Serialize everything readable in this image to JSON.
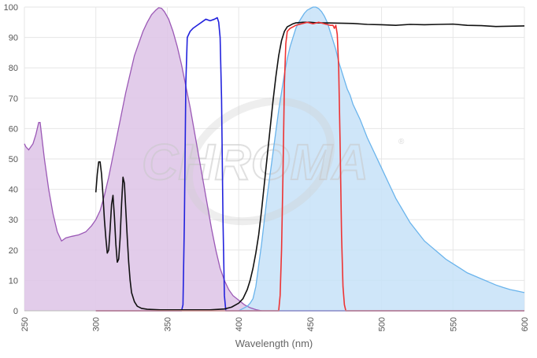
{
  "chart_data": {
    "type": "area",
    "title": "",
    "xlabel": "Wavelength (nm)",
    "ylabel": "",
    "xlim": [
      250,
      600
    ],
    "ylim": [
      0,
      100
    ],
    "x_ticks": [
      250,
      300,
      350,
      400,
      450,
      500,
      550,
      600
    ],
    "y_ticks": [
      0,
      10,
      20,
      30,
      40,
      50,
      60,
      70,
      80,
      90,
      100
    ],
    "grid": true,
    "watermark": "CHROMA",
    "series": [
      {
        "kind": "area",
        "color": "#9b59b6",
        "fill": "#ddc3e6",
        "points": [
          [
            250,
            55
          ],
          [
            251,
            54
          ],
          [
            253,
            53
          ],
          [
            256,
            55
          ],
          [
            258,
            58
          ],
          [
            260,
            62
          ],
          [
            261,
            62
          ],
          [
            262,
            58
          ],
          [
            264,
            50
          ],
          [
            267,
            40
          ],
          [
            270,
            32
          ],
          [
            273,
            26
          ],
          [
            276,
            23
          ],
          [
            279,
            24
          ],
          [
            283,
            24.5
          ],
          [
            288,
            25
          ],
          [
            293,
            26
          ],
          [
            297,
            28
          ],
          [
            300,
            30
          ],
          [
            303,
            33
          ],
          [
            306,
            38
          ],
          [
            309,
            44
          ],
          [
            312,
            51
          ],
          [
            315,
            58
          ],
          [
            318,
            65
          ],
          [
            321,
            72
          ],
          [
            324,
            78
          ],
          [
            327,
            84
          ],
          [
            330,
            88
          ],
          [
            333,
            92
          ],
          [
            336,
            95
          ],
          [
            339,
            97.5
          ],
          [
            342,
            99
          ],
          [
            344,
            99.8
          ],
          [
            346,
            99.6
          ],
          [
            348,
            98.5
          ],
          [
            351,
            96
          ],
          [
            354,
            92
          ],
          [
            357,
            87
          ],
          [
            360,
            81
          ],
          [
            363,
            74
          ],
          [
            366,
            67
          ],
          [
            369,
            59
          ],
          [
            372,
            51
          ],
          [
            375,
            43
          ],
          [
            378,
            35
          ],
          [
            381,
            27
          ],
          [
            384,
            20
          ],
          [
            387,
            14
          ],
          [
            390,
            10
          ],
          [
            393,
            7
          ],
          [
            396,
            5
          ],
          [
            400,
            3.5
          ],
          [
            404,
            2
          ],
          [
            408,
            1
          ],
          [
            412,
            0.4
          ],
          [
            416,
            0
          ]
        ]
      },
      {
        "kind": "area",
        "color": "#6ab4ec",
        "fill": "#c7e2f8",
        "points": [
          [
            400,
            0
          ],
          [
            402,
            0.5
          ],
          [
            404,
            1
          ],
          [
            406,
            1.5
          ],
          [
            408,
            2.5
          ],
          [
            410,
            4
          ],
          [
            412,
            8
          ],
          [
            414,
            15
          ],
          [
            416,
            22
          ],
          [
            418,
            30
          ],
          [
            420,
            38
          ],
          [
            422,
            45
          ],
          [
            424,
            52
          ],
          [
            426,
            59
          ],
          [
            428,
            66
          ],
          [
            430,
            72
          ],
          [
            432,
            78
          ],
          [
            434,
            83
          ],
          [
            436,
            87
          ],
          [
            438,
            90
          ],
          [
            440,
            93
          ],
          [
            442,
            95
          ],
          [
            444,
            96.5
          ],
          [
            446,
            98
          ],
          [
            448,
            99
          ],
          [
            450,
            99.5
          ],
          [
            452,
            100
          ],
          [
            454,
            100
          ],
          [
            456,
            99.5
          ],
          [
            458,
            98.5
          ],
          [
            460,
            97
          ],
          [
            462,
            95
          ],
          [
            464,
            92
          ],
          [
            466,
            89
          ],
          [
            468,
            86
          ],
          [
            470,
            82
          ],
          [
            472,
            79
          ],
          [
            474,
            76
          ],
          [
            476,
            73
          ],
          [
            478,
            71
          ],
          [
            480,
            68
          ],
          [
            485,
            63
          ],
          [
            490,
            57
          ],
          [
            495,
            52
          ],
          [
            500,
            47
          ],
          [
            505,
            42
          ],
          [
            510,
            37
          ],
          [
            515,
            33
          ],
          [
            520,
            29
          ],
          [
            525,
            26
          ],
          [
            530,
            23
          ],
          [
            535,
            21
          ],
          [
            540,
            19
          ],
          [
            545,
            17
          ],
          [
            550,
            15.5
          ],
          [
            555,
            14
          ],
          [
            560,
            12.5
          ],
          [
            565,
            11.5
          ],
          [
            570,
            10.5
          ],
          [
            575,
            9.5
          ],
          [
            580,
            8.5
          ],
          [
            585,
            7.7
          ],
          [
            590,
            7
          ],
          [
            595,
            6.5
          ],
          [
            600,
            6
          ]
        ]
      },
      {
        "kind": "line",
        "color": "#2222dd",
        "points": [
          [
            300,
            0
          ],
          [
            360,
            0
          ],
          [
            361,
            2
          ],
          [
            362,
            30
          ],
          [
            363,
            75
          ],
          [
            364,
            90
          ],
          [
            366,
            92
          ],
          [
            368,
            93
          ],
          [
            371,
            94
          ],
          [
            374,
            95
          ],
          [
            377,
            96
          ],
          [
            380,
            95.5
          ],
          [
            383,
            96
          ],
          [
            385,
            96.5
          ],
          [
            386,
            95
          ],
          [
            387,
            90
          ],
          [
            388,
            70
          ],
          [
            389,
            30
          ],
          [
            390,
            5
          ],
          [
            391,
            0
          ],
          [
            600,
            0
          ]
        ]
      },
      {
        "kind": "line",
        "color": "#111111",
        "points": [
          [
            300,
            39
          ],
          [
            301,
            45
          ],
          [
            302,
            49
          ],
          [
            303,
            49
          ],
          [
            304,
            45
          ],
          [
            305,
            38
          ],
          [
            306,
            30
          ],
          [
            307,
            24
          ],
          [
            308,
            19
          ],
          [
            309,
            20
          ],
          [
            310,
            27
          ],
          [
            311,
            35
          ],
          [
            312,
            38
          ],
          [
            313,
            31
          ],
          [
            314,
            22
          ],
          [
            315,
            16
          ],
          [
            316,
            17
          ],
          [
            317,
            24
          ],
          [
            318,
            35
          ],
          [
            319,
            44
          ],
          [
            320,
            42
          ],
          [
            321,
            33
          ],
          [
            322,
            24
          ],
          [
            323,
            16
          ],
          [
            324,
            10
          ],
          [
            325,
            6
          ],
          [
            327,
            3
          ],
          [
            329,
            1.5
          ],
          [
            332,
            0.8
          ],
          [
            336,
            0.5
          ],
          [
            345,
            0.3
          ],
          [
            380,
            0.3
          ],
          [
            390,
            0.6
          ],
          [
            395,
            1.2
          ],
          [
            400,
            2.5
          ],
          [
            403,
            4
          ],
          [
            406,
            7
          ],
          [
            408,
            10
          ],
          [
            410,
            14
          ],
          [
            412,
            19
          ],
          [
            414,
            25
          ],
          [
            416,
            33
          ],
          [
            418,
            42
          ],
          [
            420,
            51
          ],
          [
            422,
            60
          ],
          [
            424,
            69
          ],
          [
            426,
            77
          ],
          [
            428,
            84
          ],
          [
            430,
            89
          ],
          [
            432,
            92
          ],
          [
            434,
            93.5
          ],
          [
            436,
            94
          ],
          [
            438,
            94.5
          ],
          [
            440,
            94.8
          ],
          [
            445,
            95
          ],
          [
            450,
            95
          ],
          [
            455,
            94.8
          ],
          [
            460,
            94.8
          ],
          [
            470,
            94.7
          ],
          [
            480,
            94.6
          ],
          [
            490,
            94.3
          ],
          [
            500,
            94.2
          ],
          [
            510,
            94
          ],
          [
            520,
            94.3
          ],
          [
            530,
            94.2
          ],
          [
            540,
            94.3
          ],
          [
            550,
            94.4
          ],
          [
            560,
            94
          ],
          [
            570,
            93.9
          ],
          [
            580,
            93.6
          ],
          [
            590,
            93.7
          ],
          [
            600,
            93.8
          ]
        ]
      },
      {
        "kind": "line",
        "color": "#ee3333",
        "points": [
          [
            300,
            0
          ],
          [
            428,
            0
          ],
          [
            429,
            5
          ],
          [
            430,
            20
          ],
          [
            431,
            45
          ],
          [
            432,
            75
          ],
          [
            433,
            88
          ],
          [
            434,
            92
          ],
          [
            436,
            93
          ],
          [
            440,
            94
          ],
          [
            444,
            94.5
          ],
          [
            448,
            95
          ],
          [
            452,
            94.5
          ],
          [
            456,
            95
          ],
          [
            460,
            94.5
          ],
          [
            464,
            94
          ],
          [
            466,
            94
          ],
          [
            467,
            93
          ],
          [
            468,
            94
          ],
          [
            469,
            91
          ],
          [
            470,
            80
          ],
          [
            471,
            55
          ],
          [
            472,
            25
          ],
          [
            473,
            8
          ],
          [
            474,
            2
          ],
          [
            475,
            0
          ],
          [
            600,
            0
          ]
        ]
      }
    ]
  }
}
